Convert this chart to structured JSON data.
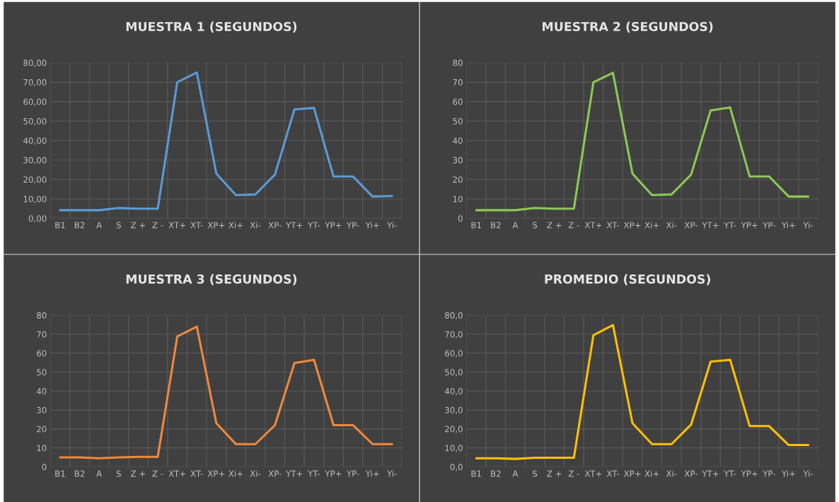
{
  "chart_data": [
    {
      "type": "line",
      "title": "MUESTRA 1 (SEGUNDOS)",
      "categories": [
        "B1",
        "B2",
        "A",
        "S",
        "Z +",
        "Z -",
        "XT+",
        "XT-",
        "XP+",
        "Xi+",
        "Xi-",
        "XP-",
        "YT+",
        "YT-",
        "YP+",
        "YP-",
        "Yi+",
        "Yi-"
      ],
      "series": [
        {
          "color": "#5b9bd5",
          "values": [
            4.2,
            4.2,
            4.2,
            5.3,
            5.0,
            5.0,
            70,
            75,
            23,
            12,
            12.3,
            22.5,
            56,
            56.8,
            21.5,
            21.5,
            11.2,
            11.5
          ]
        }
      ],
      "ylim": [
        0,
        80
      ],
      "yticks": [
        {
          "value": 0,
          "label": "0,00"
        },
        {
          "value": 10,
          "label": "10,00"
        },
        {
          "value": 20,
          "label": "20,00"
        },
        {
          "value": 30,
          "label": "30,00"
        },
        {
          "value": 40,
          "label": "40,00"
        },
        {
          "value": 50,
          "label": "50,00"
        },
        {
          "value": 60,
          "label": "60,00"
        },
        {
          "value": 70,
          "label": "70,00"
        },
        {
          "value": 80,
          "label": "80,00"
        }
      ],
      "grid": true
    },
    {
      "type": "line",
      "title": "MUESTRA 2 (SEGUNDOS)",
      "categories": [
        "B1",
        "B2",
        "A",
        "S",
        "Z +",
        "Z -",
        "XT+",
        "XT-",
        "XP+",
        "Xi+",
        "Xi-",
        "XP-",
        "YT+",
        "YT-",
        "YP+",
        "YP-",
        "Yi+",
        "Yi-"
      ],
      "series": [
        {
          "color": "#8dc855",
          "values": [
            4.2,
            4.2,
            4.2,
            5.3,
            5.0,
            5.0,
            70,
            74.8,
            23,
            12,
            12.3,
            22.5,
            55.5,
            57,
            21.5,
            21.5,
            11.2,
            11.2
          ]
        }
      ],
      "ylim": [
        0,
        80
      ],
      "yticks": [
        0,
        10,
        20,
        30,
        40,
        50,
        60,
        70,
        80
      ],
      "grid": true
    },
    {
      "type": "line",
      "title": "MUESTRA 3 (SEGUNDOS)",
      "categories": [
        "B1",
        "B2",
        "A",
        "S",
        "Z +",
        "Z -",
        "XT+",
        "XT-",
        "XP+",
        "Xi+",
        "Xi-",
        "XP-",
        "YT+",
        "YT-",
        "YP+",
        "YP-",
        "Yi+",
        "Yi-"
      ],
      "series": [
        {
          "color": "#f0883e",
          "values": [
            5.0,
            5.0,
            4.5,
            5.0,
            5.3,
            5.3,
            68.8,
            74,
            23,
            12,
            12,
            22,
            54.8,
            56.5,
            22,
            22,
            12,
            12
          ]
        }
      ],
      "ylim": [
        0,
        80
      ],
      "yticks": [
        0,
        10,
        20,
        30,
        40,
        50,
        60,
        70,
        80
      ],
      "grid": true
    },
    {
      "type": "line",
      "title": "PROMEDIO (SEGUNDOS)",
      "categories": [
        "B1",
        "B2",
        "A",
        "S",
        "Z +",
        "Z -",
        "XT+",
        "XT-",
        "XP+",
        "Xi+",
        "Xi-",
        "XP-",
        "YT+",
        "YT-",
        "YP+",
        "YP-",
        "Yi+",
        "Yi-"
      ],
      "series": [
        {
          "color": "#ffc000",
          "values": [
            4.5,
            4.5,
            4.2,
            4.8,
            4.8,
            4.8,
            69.5,
            74.8,
            23,
            12,
            12,
            22.3,
            55.5,
            56.5,
            21.5,
            21.5,
            11.5,
            11.5
          ]
        }
      ],
      "ylim": [
        0,
        80
      ],
      "yticks": [
        {
          "value": 0,
          "label": "0,0"
        },
        {
          "value": 10,
          "label": "10,0"
        },
        {
          "value": 20,
          "label": "20,0"
        },
        {
          "value": 30,
          "label": "30,0"
        },
        {
          "value": 40,
          "label": "40,0"
        },
        {
          "value": 50,
          "label": "50,0"
        },
        {
          "value": 60,
          "label": "60,0"
        },
        {
          "value": 70,
          "label": "70,0"
        },
        {
          "value": 80,
          "label": "80,0"
        }
      ],
      "grid": true
    }
  ]
}
